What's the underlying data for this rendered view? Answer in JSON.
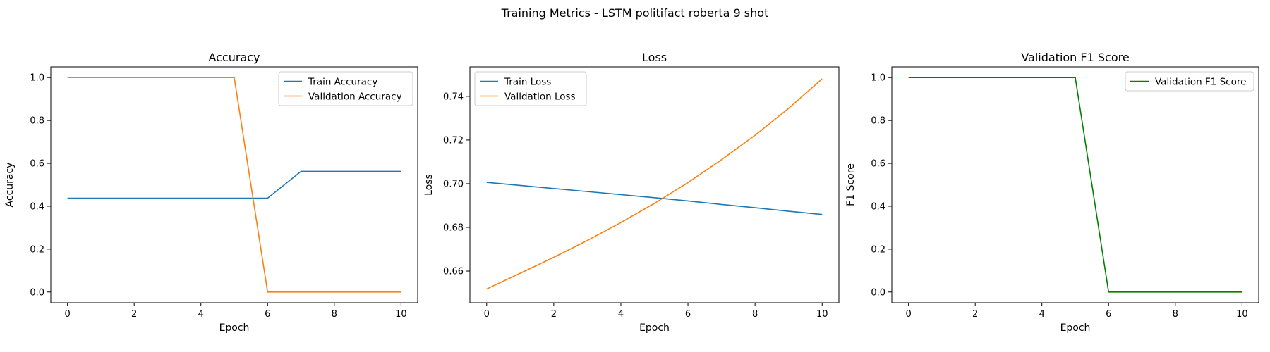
{
  "figure": {
    "title": "Training Metrics - LSTM politifact roberta 9 shot"
  },
  "chart_data": [
    {
      "type": "line",
      "title": "Accuracy",
      "xlabel": "Epoch",
      "ylabel": "Accuracy",
      "x": [
        0,
        1,
        2,
        3,
        4,
        5,
        6,
        7,
        8,
        9,
        10
      ],
      "xlim": [
        -0.5,
        10.5
      ],
      "ylim": [
        -0.05,
        1.05
      ],
      "xticks": [
        0,
        2,
        4,
        6,
        8,
        10
      ],
      "yticks": [
        0.0,
        0.2,
        0.4,
        0.6,
        0.8,
        1.0
      ],
      "ytick_decimals": 1,
      "grid": false,
      "legend_position": "top-right",
      "series": [
        {
          "name": "Train Accuracy",
          "color": "#1f77b4",
          "values": [
            0.4375,
            0.4375,
            0.4375,
            0.4375,
            0.4375,
            0.4375,
            0.4375,
            0.5625,
            0.5625,
            0.5625,
            0.5625
          ]
        },
        {
          "name": "Validation Accuracy",
          "color": "#ff7f0e",
          "values": [
            1.0,
            1.0,
            1.0,
            1.0,
            1.0,
            1.0,
            0.0,
            0.0,
            0.0,
            0.0,
            0.0
          ]
        }
      ]
    },
    {
      "type": "line",
      "title": "Loss",
      "xlabel": "Epoch",
      "ylabel": "Loss",
      "x": [
        0,
        1,
        2,
        3,
        4,
        5,
        6,
        7,
        8,
        9,
        10
      ],
      "xlim": [
        -0.5,
        10.5
      ],
      "ylim": [
        0.6455,
        0.7535
      ],
      "xticks": [
        0,
        2,
        4,
        6,
        8,
        10
      ],
      "yticks": [
        0.66,
        0.68,
        0.7,
        0.72,
        0.74
      ],
      "ytick_decimals": 2,
      "grid": false,
      "legend_position": "top-left",
      "series": [
        {
          "name": "Train Loss",
          "color": "#1f77b4",
          "values": [
            0.7006,
            0.6992,
            0.6978,
            0.6964,
            0.695,
            0.6936,
            0.6921,
            0.6905,
            0.689,
            0.6874,
            0.6859
          ]
        },
        {
          "name": "Validation Loss",
          "color": "#ff7f0e",
          "values": [
            0.6518,
            0.659,
            0.6663,
            0.674,
            0.6822,
            0.691,
            0.7005,
            0.711,
            0.7222,
            0.7345,
            0.748
          ]
        }
      ]
    },
    {
      "type": "line",
      "title": "Validation F1 Score",
      "xlabel": "Epoch",
      "ylabel": "F1 Score",
      "x": [
        0,
        1,
        2,
        3,
        4,
        5,
        6,
        7,
        8,
        9,
        10
      ],
      "xlim": [
        -0.5,
        10.5
      ],
      "ylim": [
        -0.05,
        1.05
      ],
      "xticks": [
        0,
        2,
        4,
        6,
        8,
        10
      ],
      "yticks": [
        0.0,
        0.2,
        0.4,
        0.6,
        0.8,
        1.0
      ],
      "ytick_decimals": 1,
      "grid": false,
      "legend_position": "top-right",
      "series": [
        {
          "name": "Validation F1 Score",
          "color": "#008000",
          "values": [
            1.0,
            1.0,
            1.0,
            1.0,
            1.0,
            1.0,
            0.0,
            0.0,
            0.0,
            0.0,
            0.0
          ]
        }
      ]
    }
  ]
}
